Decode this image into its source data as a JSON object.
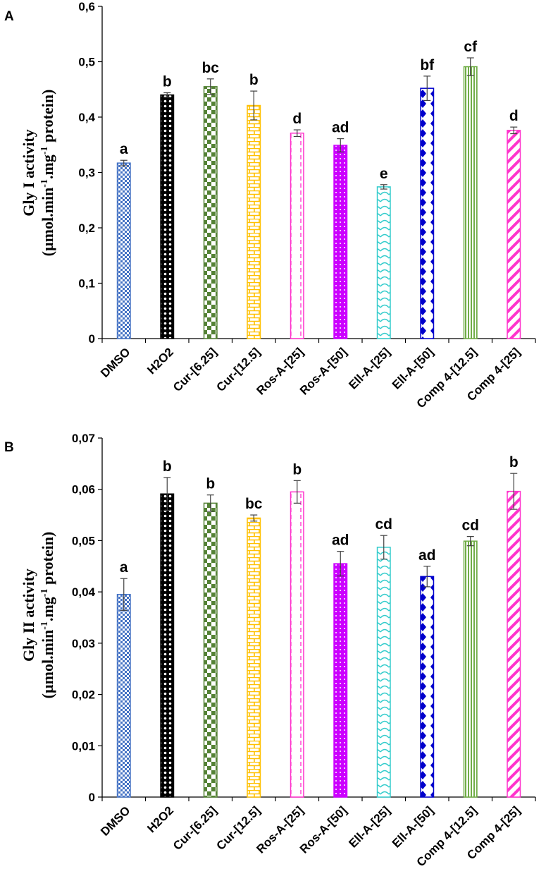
{
  "chart_data": [
    {
      "type": "bar",
      "panel_label": "A",
      "ylabel_line1": "Gly I activity",
      "ylabel_line2_prefix": "(µmol.min",
      "ylabel_sup1": "-1",
      "ylabel_line2_mid": ".mg",
      "ylabel_sup2": "-1",
      "ylabel_line2_suffix": " protein)",
      "ylim": [
        0,
        0.6
      ],
      "yticks": [
        0,
        0.1,
        0.2,
        0.3,
        0.4,
        0.5,
        0.6
      ],
      "ytick_labels": [
        "0",
        "0,1",
        "0,2",
        "0,3",
        "0,4",
        "0,5",
        "0,6"
      ],
      "categories": [
        "DMSO",
        "H2O2",
        "Cur-[6.25]",
        "Cur-[12.5]",
        "Ros-A-[25]",
        "Ros-A-[50]",
        "Ell-A-[25]",
        "Ell-A-[50]",
        "Comp 4-[12.5]",
        "Comp 4-[25]"
      ],
      "values": [
        0.317,
        0.44,
        0.455,
        0.421,
        0.371,
        0.349,
        0.274,
        0.452,
        0.491,
        0.376
      ],
      "errors": [
        0.005,
        0.004,
        0.014,
        0.026,
        0.006,
        0.012,
        0.004,
        0.022,
        0.016,
        0.006
      ],
      "significance": [
        "a",
        "b",
        "bc",
        "b",
        "d",
        "ad",
        "e",
        "bf",
        "cf",
        "d"
      ]
    },
    {
      "type": "bar",
      "panel_label": "B",
      "ylabel_line1": "Gly II activity",
      "ylabel_line2_prefix": "(µmol.min",
      "ylabel_sup1": "-1",
      "ylabel_line2_mid": ".mg",
      "ylabel_sup2": "-1",
      "ylabel_line2_suffix": " protein)",
      "ylim": [
        0,
        0.07
      ],
      "yticks": [
        0,
        0.01,
        0.02,
        0.03,
        0.04,
        0.05,
        0.06,
        0.07
      ],
      "ytick_labels": [
        "0",
        "0,01",
        "0,02",
        "0,03",
        "0,04",
        "0,05",
        "0,06",
        "0,07"
      ],
      "categories": [
        "DMSO",
        "H2O2",
        "Cur-[6.25]",
        "Cur-[12.5]",
        "Ros-A-[25]",
        "Ros-A-[50]",
        "Ell-A-[25]",
        "Ell-A-[50]",
        "Comp 4-[12.5]",
        "Comp 4-[25]"
      ],
      "values": [
        0.0395,
        0.0591,
        0.0573,
        0.0544,
        0.0595,
        0.0455,
        0.0487,
        0.043,
        0.0499,
        0.0596
      ],
      "errors": [
        0.0031,
        0.0032,
        0.0016,
        0.0006,
        0.0022,
        0.0024,
        0.0023,
        0.002,
        0.0009,
        0.0035
      ],
      "significance": [
        "a",
        "b",
        "b",
        "bc",
        "b",
        "ad",
        "cd",
        "ad",
        "cd",
        "b"
      ]
    }
  ],
  "colors": [
    "#4472c4",
    "#000000",
    "#548235",
    "#ffc000",
    "#ff33cc",
    "#cc00ff",
    "#33cccc",
    "#0000cc",
    "#70ad47",
    "#ff33cc"
  ]
}
